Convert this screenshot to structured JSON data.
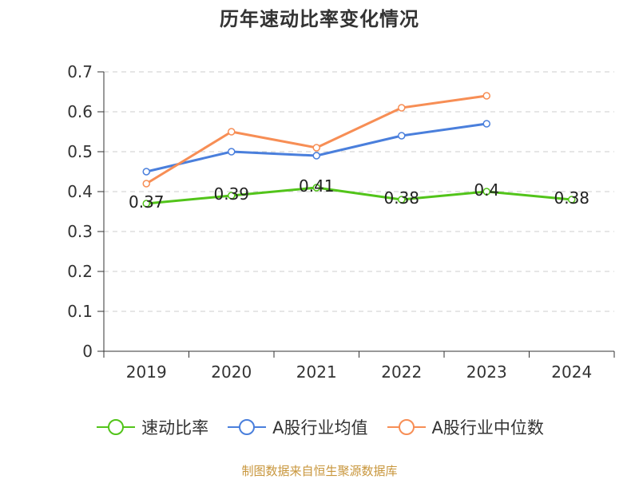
{
  "chart_data": {
    "type": "line",
    "title": "历年速动比率变化情况",
    "categories": [
      "2019",
      "2020",
      "2021",
      "2022",
      "2023",
      "2024"
    ],
    "y_ticks": [
      "0",
      "0.1",
      "0.2",
      "0.3",
      "0.4",
      "0.5",
      "0.6",
      "0.7"
    ],
    "ylim": [
      0,
      0.7
    ],
    "grid": true,
    "legend_position": "bottom",
    "series": [
      {
        "name": "速动比率",
        "color": "#52c41a",
        "values": [
          0.37,
          0.39,
          0.41,
          0.38,
          0.4,
          0.38
        ],
        "labels": [
          "0.37",
          "0.39",
          "0.41",
          "0.38",
          "0.4",
          "0.38"
        ]
      },
      {
        "name": "A股行业均值",
        "color": "#4a7fdc",
        "values": [
          0.45,
          0.5,
          0.49,
          0.54,
          0.57,
          null
        ]
      },
      {
        "name": "A股行业中位数",
        "color": "#f78e55",
        "values": [
          0.42,
          0.55,
          0.51,
          0.61,
          0.64,
          null
        ]
      }
    ]
  },
  "footer": "制图数据来自恒生聚源数据库"
}
